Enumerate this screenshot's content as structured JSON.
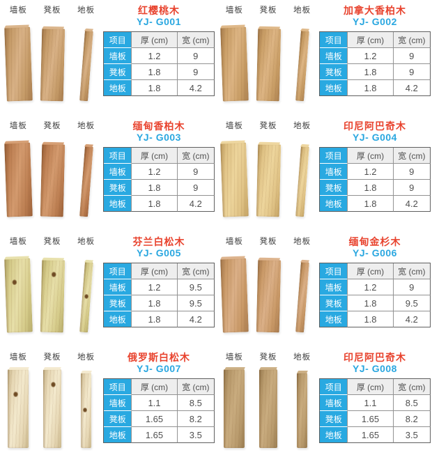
{
  "colors": {
    "product_name_red": "#e8432e",
    "code_blue": "#2aa7e0",
    "table_blue": "#29a9e1",
    "header_gray": "#eeeeee",
    "table_text": "#4f4f4f",
    "border_dark": "#5f5f5f",
    "border_inner": "#929292"
  },
  "sample_labels": [
    "墙板",
    "凳板",
    "地板"
  ],
  "spec_table": {
    "headers": [
      "项目",
      "厚 (cm)",
      "宽 (cm)"
    ],
    "row_labels": [
      "墙板",
      "凳板",
      "地板"
    ]
  },
  "products": [
    {
      "name": "红樱桃木",
      "code": "YJ- G001",
      "style": "lean",
      "knots": false,
      "wood": {
        "light": "#d9b287",
        "base": "#c59b68",
        "dark": "#a87c4e"
      },
      "rows": [
        [
          "1.2",
          "9"
        ],
        [
          "1.8",
          "9"
        ],
        [
          "1.8",
          "4.2"
        ]
      ]
    },
    {
      "name": "加拿大香柏木",
      "code": "YJ- G002",
      "style": "lean",
      "knots": false,
      "wood": {
        "light": "#ddb584",
        "base": "#c99e66",
        "dark": "#ab8050"
      },
      "rows": [
        [
          "1.2",
          "9"
        ],
        [
          "1.8",
          "9"
        ],
        [
          "1.8",
          "4.2"
        ]
      ]
    },
    {
      "name": "缅甸香柏木",
      "code": "YJ- G003",
      "style": "lean",
      "knots": false,
      "wood": {
        "light": "#d49b6f",
        "base": "#bd7f52",
        "dark": "#9c6139"
      },
      "rows": [
        [
          "1.2",
          "9"
        ],
        [
          "1.8",
          "9"
        ],
        [
          "1.8",
          "4.2"
        ]
      ]
    },
    {
      "name": "印尼阿巴奇木",
      "code": "YJ- G004",
      "style": "lean",
      "knots": false,
      "wood": {
        "light": "#edd59c",
        "base": "#e0c386",
        "dark": "#c3a263"
      },
      "rows": [
        [
          "1.2",
          "9"
        ],
        [
          "1.8",
          "9"
        ],
        [
          "1.8",
          "4.2"
        ]
      ]
    },
    {
      "name": "芬兰白松木",
      "code": "YJ- G005",
      "style": "lean",
      "knots": true,
      "wood": {
        "light": "#e7dfa9",
        "base": "#d6cc8b",
        "dark": "#b8ad6b"
      },
      "rows": [
        [
          "1.2",
          "9.5"
        ],
        [
          "1.8",
          "9.5"
        ],
        [
          "1.8",
          "4.2"
        ]
      ]
    },
    {
      "name": "缅甸金杉木",
      "code": "YJ- G006",
      "style": "lean",
      "knots": false,
      "wood": {
        "light": "#dbb088",
        "base": "#c99967",
        "dark": "#a97c50"
      },
      "rows": [
        [
          "1.2",
          "9"
        ],
        [
          "1.8",
          "9.5"
        ],
        [
          "1.8",
          "4.2"
        ]
      ]
    },
    {
      "name": "俄罗斯白松木",
      "code": "YJ- G007",
      "style": "straight",
      "knots": true,
      "wood": {
        "light": "#f3e9cd",
        "base": "#e6d7b4",
        "dark": "#cbb98e"
      },
      "rows": [
        [
          "1.1",
          "8.5"
        ],
        [
          "1.65",
          "8.2"
        ],
        [
          "1.65",
          "3.5"
        ]
      ]
    },
    {
      "name": "印尼阿巴奇木",
      "code": "YJ- G008",
      "style": "straight",
      "knots": false,
      "wood": {
        "light": "#c9ac7f",
        "base": "#b89a6c",
        "dark": "#9b7e53"
      },
      "rows": [
        [
          "1.1",
          "8.5"
        ],
        [
          "1.65",
          "8.2"
        ],
        [
          "1.65",
          "3.5"
        ]
      ]
    }
  ]
}
